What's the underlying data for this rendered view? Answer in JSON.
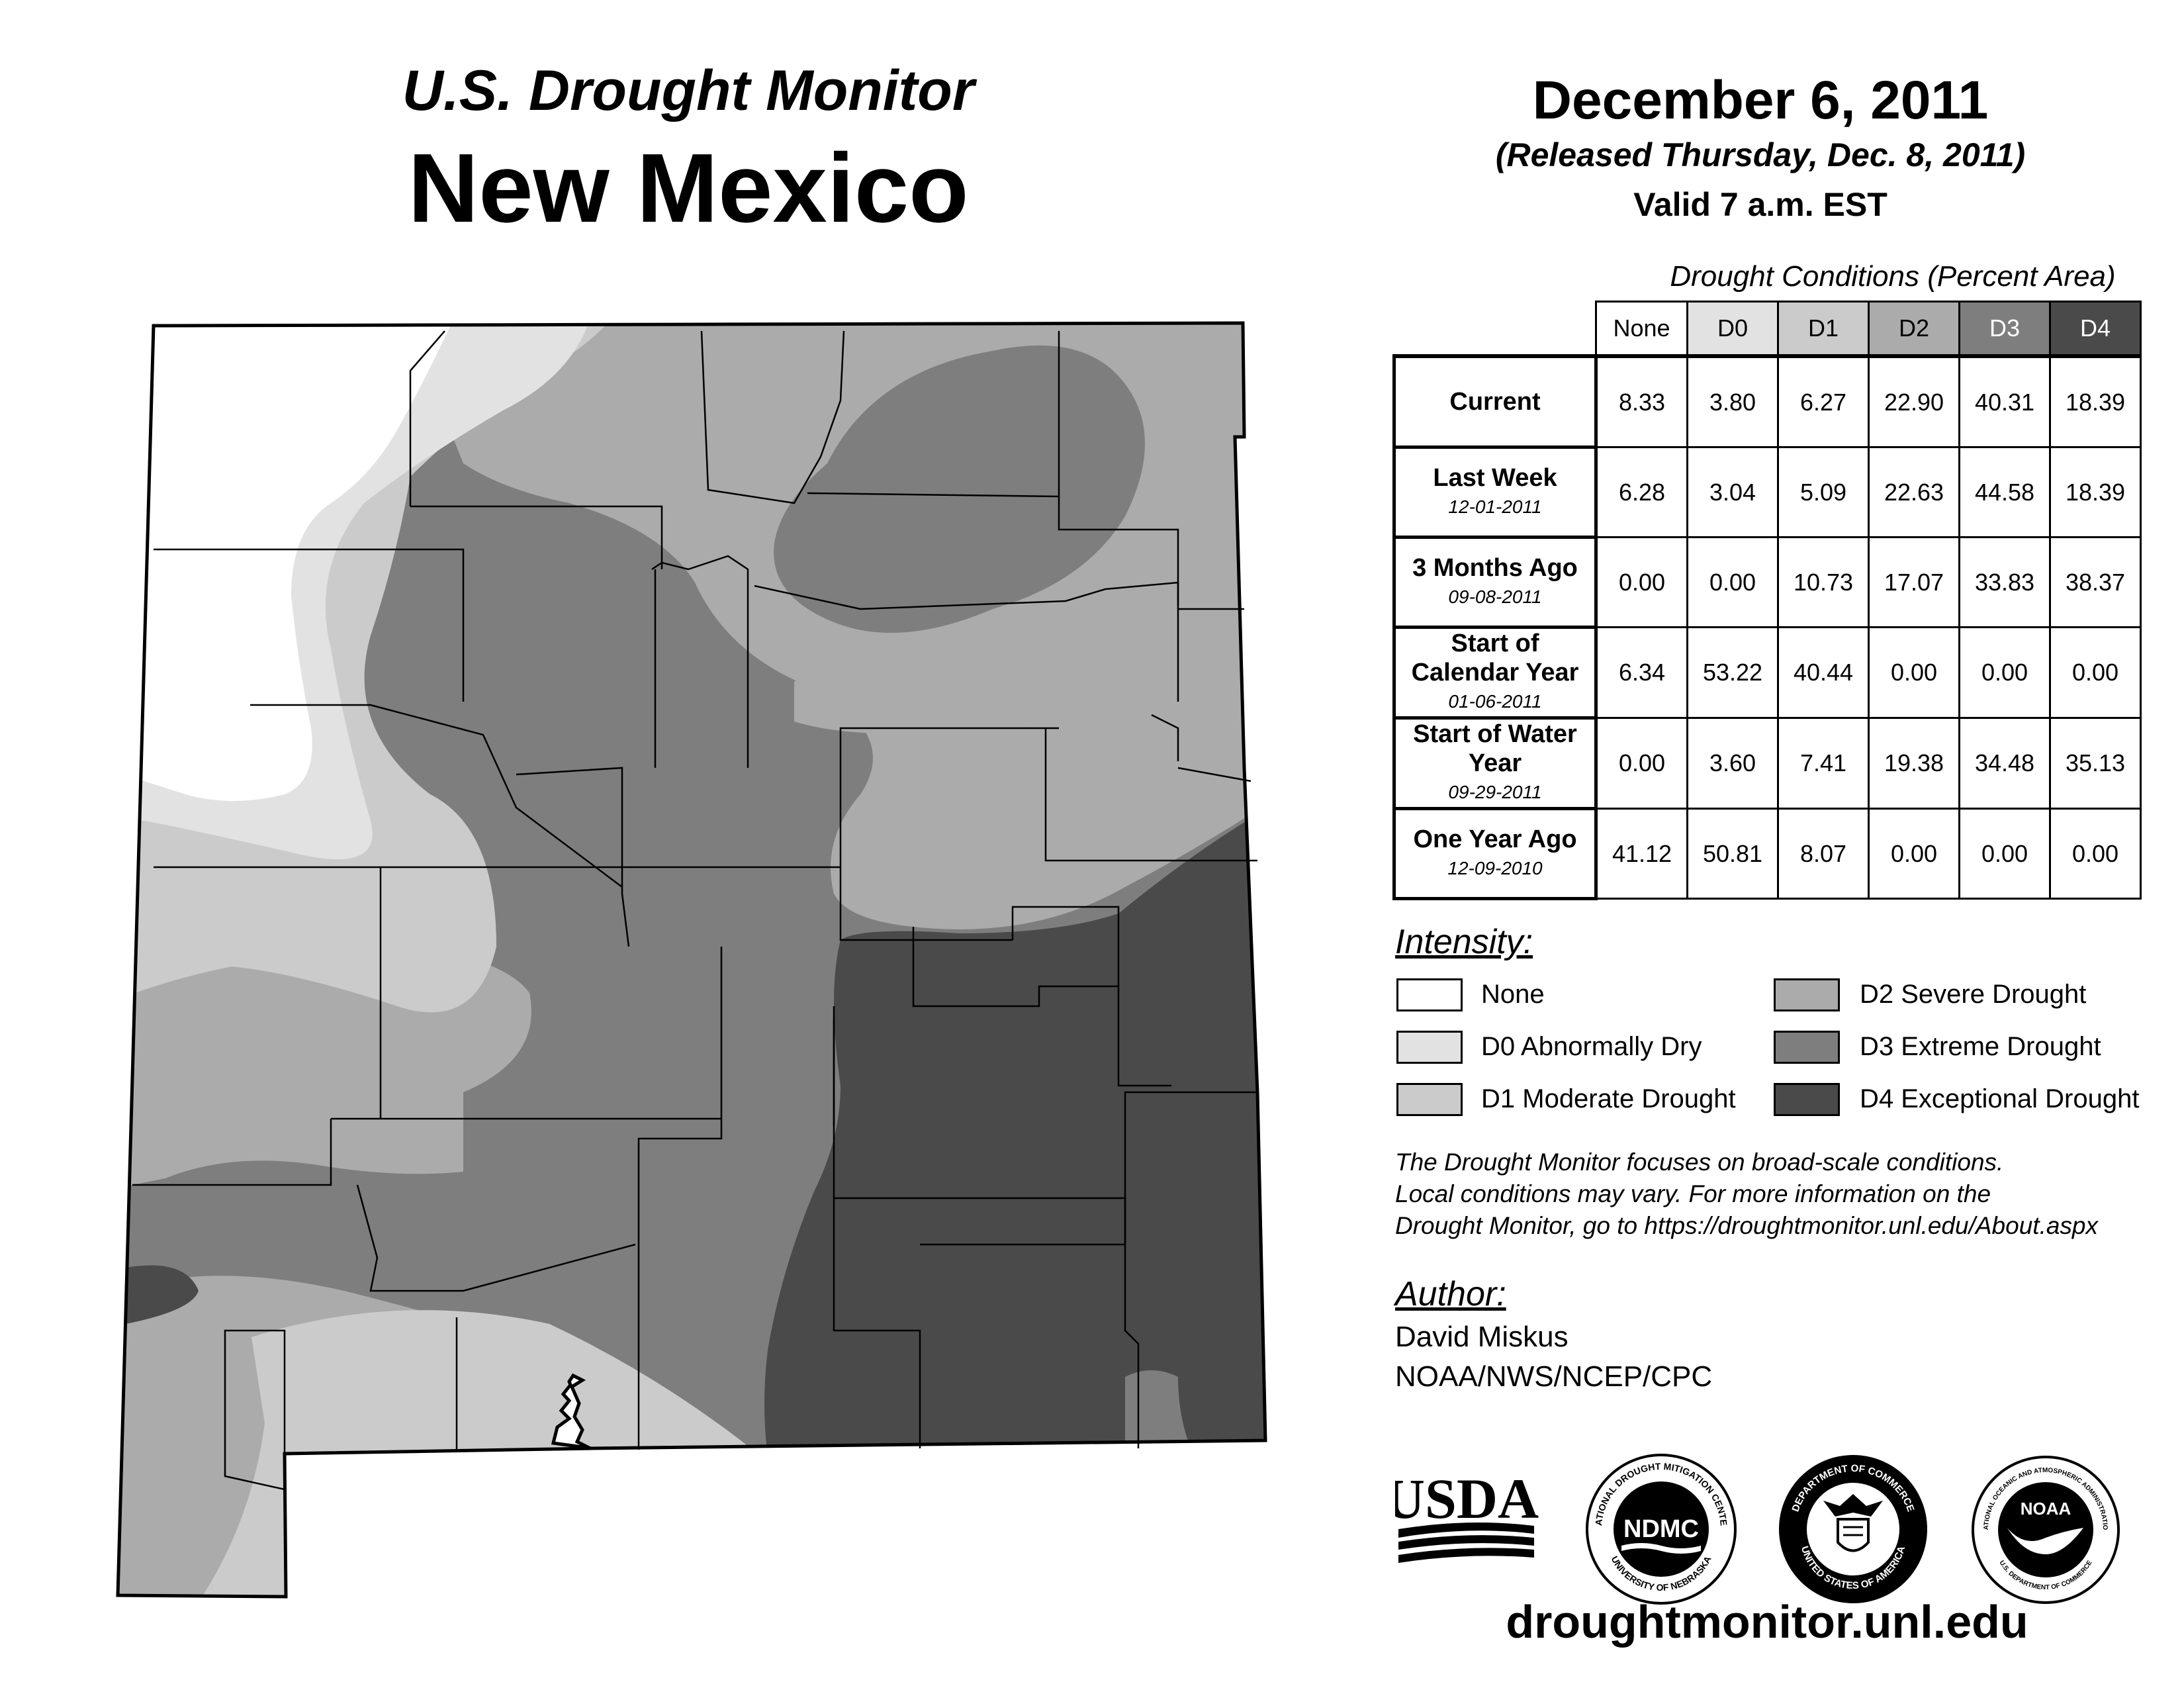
{
  "header": {
    "subtitle": "U.S. Drought Monitor",
    "state": "New Mexico",
    "date": "December 6, 2011",
    "released": "(Released Thursday, Dec. 8, 2011)",
    "valid": "Valid 7 a.m. EST"
  },
  "table": {
    "caption": "Drought Conditions (Percent Area)",
    "columns": [
      "None",
      "D0",
      "D1",
      "D2",
      "D3",
      "D4"
    ],
    "rows": [
      {
        "label": "Current",
        "date": "",
        "values": [
          "8.33",
          "3.80",
          "6.27",
          "22.90",
          "40.31",
          "18.39"
        ]
      },
      {
        "label": "Last Week",
        "date": "12-01-2011",
        "values": [
          "6.28",
          "3.04",
          "5.09",
          "22.63",
          "44.58",
          "18.39"
        ]
      },
      {
        "label": "3 Months Ago",
        "date": "09-08-2011",
        "values": [
          "0.00",
          "0.00",
          "10.73",
          "17.07",
          "33.83",
          "38.37"
        ]
      },
      {
        "label": "Start of Calendar Year",
        "date": "01-06-2011",
        "values": [
          "6.34",
          "53.22",
          "40.44",
          "0.00",
          "0.00",
          "0.00"
        ]
      },
      {
        "label": "Start of Water Year",
        "date": "09-29-2011",
        "values": [
          "0.00",
          "3.60",
          "7.41",
          "19.38",
          "34.48",
          "35.13"
        ]
      },
      {
        "label": "One Year Ago",
        "date": "12-09-2010",
        "values": [
          "41.12",
          "50.81",
          "8.07",
          "0.00",
          "0.00",
          "0.00"
        ]
      }
    ]
  },
  "legend": {
    "title": "Intensity:",
    "items": [
      {
        "label": "None",
        "color": "#ffffff"
      },
      {
        "label": "D0 Abnormally Dry",
        "color": "#e2e2e2"
      },
      {
        "label": "D1 Moderate Drought",
        "color": "#cbcbcb"
      },
      {
        "label": "D2 Severe Drought",
        "color": "#ababab"
      },
      {
        "label": "D3 Extreme Drought",
        "color": "#7e7e7e"
      },
      {
        "label": "D4 Exceptional Drought",
        "color": "#4a4a4a"
      }
    ]
  },
  "note": {
    "line1": "The Drought Monitor focuses on broad-scale conditions.",
    "line2": "Local conditions may vary. For more information on the",
    "line3": "Drought Monitor, go to https://droughtmonitor.unl.edu/About.aspx"
  },
  "author": {
    "title": "Author:",
    "name": "David Miskus",
    "org": "NOAA/NWS/NCEP/CPC"
  },
  "logos": {
    "usda": "USDA",
    "ndmc": "NDMC",
    "ndmc_ring_top": "NATIONAL DROUGHT MITIGATION CENTER",
    "ndmc_ring_bottom": "UNIVERSITY OF NEBRASKA",
    "doc_ring_top": "DEPARTMENT OF COMMERCE",
    "doc_ring_bottom": "UNITED STATES OF AMERICA",
    "noaa": "NOAA",
    "noaa_ring_top": "NATIONAL OCEANIC AND ATMOSPHERIC ADMINISTRATION",
    "noaa_ring_bottom": "U.S. DEPARTMENT OF COMMERCE"
  },
  "footer": {
    "site": "droughtmonitor.unl.edu"
  }
}
